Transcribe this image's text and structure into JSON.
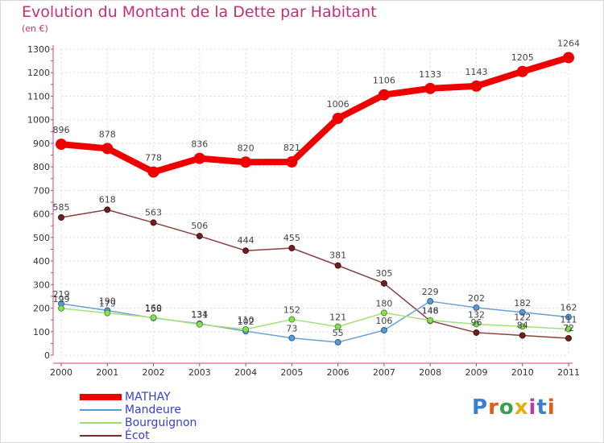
{
  "header": {
    "title": "Evolution du Montant de la Dette par Habitant",
    "subtitle": "(en €)"
  },
  "chart_data": {
    "type": "line",
    "title": "Evolution du Montant de la Dette par Habitant",
    "subtitle": "(en €)",
    "x": [
      "2000",
      "2001",
      "2002",
      "2003",
      "2004",
      "2005",
      "2006",
      "2007",
      "2008",
      "2009",
      "2010",
      "2011"
    ],
    "ylim": [
      0,
      1300
    ],
    "yticks": [
      0,
      100,
      200,
      300,
      400,
      500,
      600,
      700,
      800,
      900,
      1000,
      1100,
      1200,
      1300
    ],
    "grid": true,
    "legend_position": "bottom-left",
    "series": [
      {
        "name": "MATHAY",
        "color": "#ee0000",
        "values": [
          896,
          878,
          778,
          836,
          820,
          821,
          1006,
          1106,
          1133,
          1143,
          1205,
          1264
        ],
        "labels": [
          "896",
          "878",
          "778",
          "836",
          "820",
          "821",
          "1006",
          "1106",
          "1133",
          "1143",
          "1205",
          "1264"
        ]
      },
      {
        "name": "Mandeure",
        "color": "#5b9bd5",
        "values": [
          219,
          190,
          158,
          134,
          102,
          73,
          55,
          106,
          229,
          202,
          182,
          162
        ],
        "labels": [
          "219",
          "190",
          "158",
          "134",
          "102",
          "73",
          "55",
          "106",
          "229",
          "202",
          "182",
          "162"
        ]
      },
      {
        "name": "Bourguignon",
        "color": "#99e066",
        "values": [
          199,
          179,
          160,
          131,
          110,
          152,
          121,
          180,
          148,
          132,
          122,
          111
        ],
        "labels": [
          "199",
          "179",
          "160",
          "131",
          "110",
          "152",
          "121",
          "180",
          "148",
          "132",
          "122",
          "111"
        ]
      },
      {
        "name": "Écot",
        "color": "#7a2b2b",
        "values": [
          585,
          618,
          563,
          506,
          444,
          455,
          381,
          305,
          146,
          96,
          84,
          72
        ],
        "labels": [
          "585",
          "618",
          "563",
          "506",
          "444",
          "455",
          "381",
          "305",
          "146",
          "96",
          "84",
          "72"
        ]
      }
    ]
  },
  "legend": {
    "items": [
      "MATHAY",
      "Mandeure",
      "Bourguignon",
      "Écot"
    ]
  },
  "logo": {
    "letters": [
      "P",
      "r",
      "o",
      "x",
      "i",
      "t",
      "i"
    ],
    "colors": [
      "#3a7fd0",
      "#e05a1a",
      "#3aa04a",
      "#e0b010",
      "#c03a9a",
      "#3a7fd0",
      "#e05a1a"
    ]
  }
}
